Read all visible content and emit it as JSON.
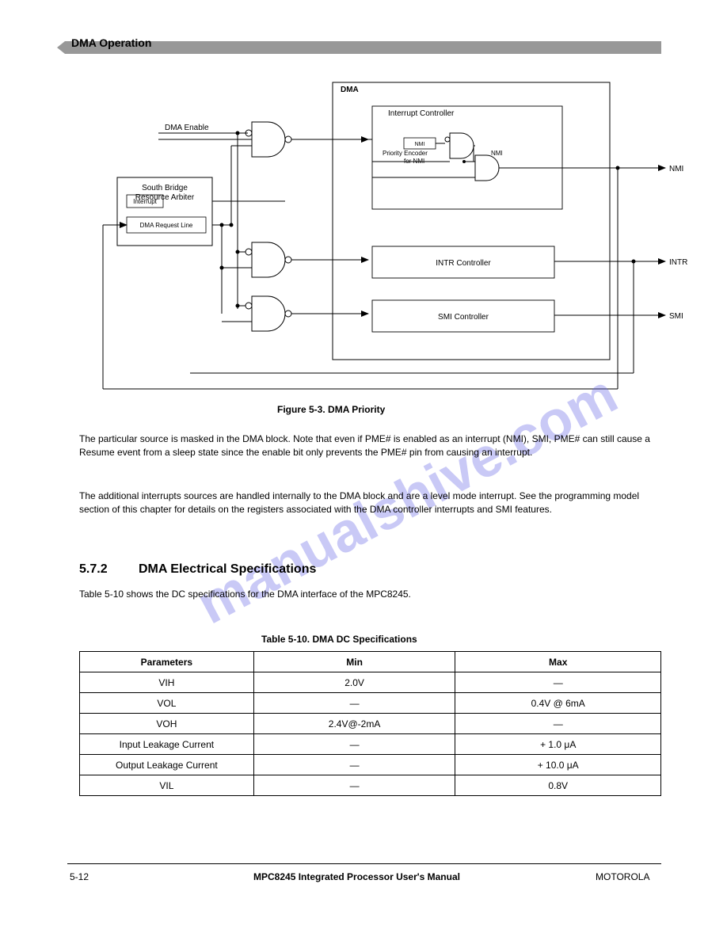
{
  "header": {
    "section": "DMA Operation"
  },
  "figure": {
    "caption_num": "Figure 5-3.",
    "caption_text": "DMA Priority",
    "nodes": {
      "dma_label": "DMA",
      "dma_outer_label": "DMA",
      "sb_title": "South Bridge Resource Arbiter",
      "int_label": "Interrupt",
      "dma_req_label": "DMA Request Line",
      "enable_label": "DMA Enable",
      "nmi_label": "Priority Encoder\nfor NMI",
      "intr_title": "Interrupt Controller",
      "nmi_small1": "NMI ",
      "prior_small": "Priority",
      "nmi_small2": "NMI",
      "intr_box": "INTR Controller",
      "smi_box": "SMI Controller",
      "out_intr": "INTR",
      "out_nmi": "NMI",
      "out_smi": "SMI"
    }
  },
  "paragraph": {
    "p1": "The particular source is masked in the DMA block. Note that even if PME# is enabled as an interrupt (NMI), SMI, PME# can still cause a Resume event from a sleep state since the enable bit only prevents the PME# pin from causing an interrupt.",
    "p2": "The additional interrupts sources are handled internally to the DMA block and are a level mode interrupt. See the programming model section of this chapter for details on the registers associated with the DMA controller interrupts and SMI features."
  },
  "section": {
    "num": "5.7.2",
    "title": "DMA Electrical Specifications"
  },
  "table": {
    "caption_num": "Table 5-10.",
    "caption_text": "DMA DC Specifications",
    "headers": [
      "Parameters",
      "Min",
      "Max"
    ],
    "rows": [
      [
        "VIH",
        "2.0V",
        "—"
      ],
      [
        "VOL",
        "—",
        "0.4V @ 6mA"
      ],
      [
        "VOH",
        "2.4V@-2mA",
        "—"
      ],
      [
        "Input Leakage Current",
        "—",
        "+ 1.0 μA"
      ],
      [
        "Output Leakage Current",
        "—",
        "+ 10.0 μA"
      ],
      [
        "VIL",
        "—",
        "0.8V"
      ]
    ]
  },
  "footer": {
    "left": "5-12",
    "center": "MPC8245 Integrated Processor User's Manual",
    "right": "MOTOROLA"
  }
}
